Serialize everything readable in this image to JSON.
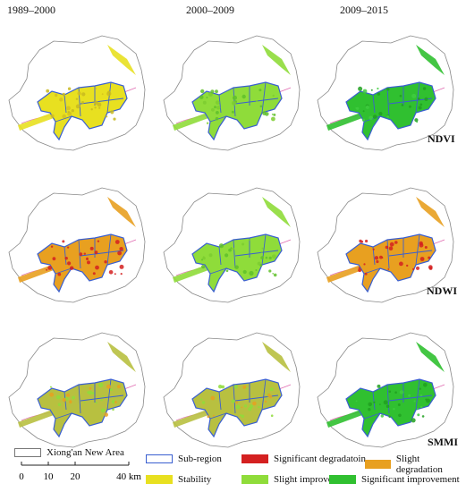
{
  "columns": [
    "1989–2000",
    "2000–2009",
    "2009–2015"
  ],
  "rows": [
    "NDVI",
    "NDWI",
    "SMMI"
  ],
  "panels": [
    [
      "stability",
      "slight_improvement",
      "significant_improvement"
    ],
    [
      "degradation_mixed",
      "slight_improvement",
      "degradation_mixed"
    ],
    [
      "slight_degradation",
      "slight_degradation",
      "significant_improvement"
    ]
  ],
  "legend": {
    "area": "Xiong'an New Area",
    "subregion": "Sub-region",
    "classes": [
      {
        "label": "Significant degradatoin",
        "color": "#d42020"
      },
      {
        "label": "Slight degradation",
        "color": "#e8a020"
      },
      {
        "label": "Stability",
        "color": "#e8e020"
      },
      {
        "label": "Slight improvement",
        "color": "#8fdc3a"
      },
      {
        "label": "Significant improvement",
        "color": "#30c030"
      }
    ]
  },
  "scale": {
    "ticks": [
      "0",
      "10",
      "20",
      "40 km"
    ]
  },
  "colors": {
    "boundary": "#888888",
    "subregion": "#3a5fd0",
    "river": "#e06ab0"
  }
}
